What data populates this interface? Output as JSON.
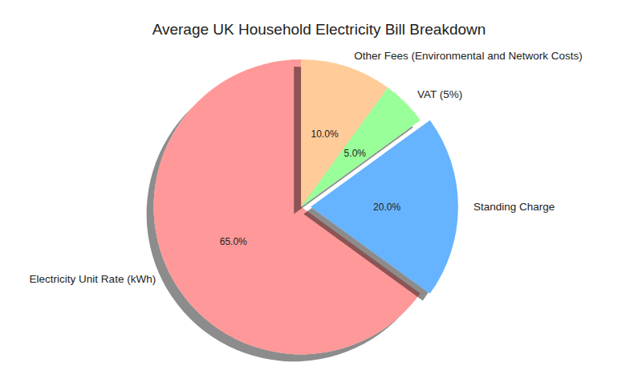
{
  "chart_data": {
    "type": "pie",
    "title": "Average UK Household Electricity Bill Breakdown",
    "categories": [
      "Electricity Unit Rate (kWh)",
      "Standing Charge",
      "VAT (5%)",
      "Other Fees (Environmental and Network Costs)"
    ],
    "values": [
      65,
      20,
      5,
      10
    ],
    "value_labels": [
      "65.0%",
      "20.0%",
      "5.0%",
      "10.0%"
    ],
    "colors": [
      "#ff9999",
      "#66b3ff",
      "#99ff99",
      "#ffcc99"
    ],
    "data_labels": true
  }
}
